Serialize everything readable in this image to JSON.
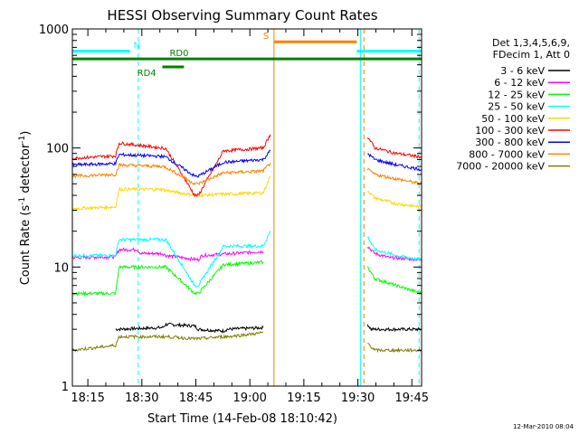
{
  "chart_data": {
    "type": "line",
    "title": "HESSI Observing Summary Count Rates",
    "xlabel": "Start Time (14-Feb-08 18:10:42)",
    "ylabel_main": "Count Rate (s",
    "ylabel_sup1": "-1",
    "ylabel_mid": " detector",
    "ylabel_sup2": "-1",
    "ylabel_end": ")",
    "yscale": "log",
    "ylim": [
      1,
      1000
    ],
    "xlim_minutes": [
      0,
      97
    ],
    "x_ticks": [
      "18:15",
      "18:30",
      "18:45",
      "19:00",
      "19:15",
      "19:30",
      "19:45"
    ],
    "y_ticks": [
      "1",
      "10",
      "100",
      "1000"
    ],
    "legend_header": [
      "Det 1,3,4,5,6,9,",
      "FDecim 1, Att 0"
    ],
    "series": [
      {
        "name": "3 - 6 keV",
        "color": "#000000",
        "segments": [
          {
            "x": [
              12,
              25,
              26,
              34,
              35,
              42,
              43,
              53
            ],
            "y": [
              3.0,
              3.1,
              3.3,
              3.2,
              3.0,
              2.9,
              3.0,
              3.1
            ]
          },
          {
            "x": [
              82,
              83,
              85,
              90,
              97
            ],
            "y": [
              3.3,
              3.0,
              3.0,
              3.0,
              3.0
            ]
          }
        ]
      },
      {
        "name": "6 - 12 keV",
        "color": "#ff00ff",
        "segments": [
          {
            "x": [
              0,
              12,
              13,
              18,
              19,
              25,
              26,
              35,
              36,
              53
            ],
            "y": [
              12.0,
              12.2,
              14.0,
              14.0,
              13.0,
              13.0,
              12.5,
              11.5,
              12.5,
              13.5
            ]
          },
          {
            "x": [
              82,
              84,
              88,
              97
            ],
            "y": [
              15.0,
              13.0,
              12.0,
              11.5
            ]
          }
        ]
      },
      {
        "name": "12 - 25 keV",
        "color": "#00ff00",
        "segments": [
          {
            "x": [
              0,
              12,
              13,
              25,
              26,
              34,
              35,
              42,
              43,
              53
            ],
            "y": [
              6.0,
              6.0,
              10.0,
              10.0,
              10.0,
              6.0,
              6.0,
              10.5,
              10.5,
              11.0
            ]
          },
          {
            "x": [
              82,
              84,
              90,
              97
            ],
            "y": [
              10.0,
              8.0,
              7.0,
              6.0
            ]
          }
        ]
      },
      {
        "name": "25 - 50 keV",
        "color": "#00ffff",
        "segments": [
          {
            "x": [
              0,
              12,
              13,
              25,
              26,
              34,
              35,
              42,
              43,
              53,
              55
            ],
            "y": [
              12.5,
              12.5,
              17.0,
              17.0,
              17.0,
              7.0,
              7.0,
              15.0,
              15.0,
              15.0,
              20.0
            ]
          },
          {
            "x": [
              82,
              84,
              90,
              97
            ],
            "y": [
              18.0,
              14.0,
              12.5,
              11.5
            ]
          }
        ]
      },
      {
        "name": "50 - 100 keV",
        "color": "#ffd700",
        "segments": [
          {
            "x": [
              0,
              12,
              13,
              25,
              26,
              34,
              35,
              42,
              43,
              53,
              55
            ],
            "y": [
              31,
              32,
              45,
              45,
              44,
              40,
              40,
              41,
              41,
              42,
              58
            ]
          },
          {
            "x": [
              82,
              84,
              90,
              97
            ],
            "y": [
              44,
              38,
              34,
              32
            ]
          }
        ]
      },
      {
        "name": "100 - 300 keV",
        "color": "#ff0000",
        "segments": [
          {
            "x": [
              0,
              12,
              13,
              25,
              26,
              34,
              35,
              42,
              43,
              53,
              55
            ],
            "y": [
              82,
              86,
              110,
              100,
              99,
              40,
              40,
              95,
              95,
              100,
              130
            ]
          },
          {
            "x": [
              82,
              84,
              90,
              97
            ],
            "y": [
              125,
              100,
              90,
              84
            ]
          }
        ]
      },
      {
        "name": "300 - 800 keV",
        "color": "#0000ff",
        "segments": [
          {
            "x": [
              0,
              12,
              13,
              25,
              26,
              34,
              35,
              42,
              43,
              53,
              55
            ],
            "y": [
              72,
              74,
              88,
              85,
              84,
              58,
              58,
              76,
              76,
              80,
              95
            ]
          },
          {
            "x": [
              82,
              84,
              90,
              97
            ],
            "y": [
              90,
              80,
              72,
              66
            ]
          }
        ]
      },
      {
        "name": "800 - 7000 keV",
        "color": "#ff8000",
        "segments": [
          {
            "x": [
              0,
              12,
              13,
              25,
              26,
              34,
              35,
              42,
              43,
              53,
              55
            ],
            "y": [
              58,
              60,
              72,
              70,
              69,
              50,
              50,
              62,
              62,
              64,
              75
            ]
          },
          {
            "x": [
              82,
              84,
              90,
              97
            ],
            "y": [
              66,
              60,
              55,
              50
            ]
          }
        ]
      },
      {
        "name": "7000 - 20000 keV",
        "color": "#808000",
        "segments": [
          {
            "x": [
              0,
              12,
              13,
              25,
              26,
              34,
              35,
              42,
              43,
              53
            ],
            "y": [
              2.0,
              2.2,
              2.6,
              2.6,
              2.6,
              2.5,
              2.5,
              2.6,
              2.6,
              2.8
            ]
          },
          {
            "x": [
              82,
              84,
              90,
              97
            ],
            "y": [
              2.3,
              2.0,
              2.0,
              2.0
            ]
          }
        ]
      }
    ],
    "flags": [
      {
        "label": "N",
        "color": "#00ffff",
        "value": 650,
        "x_start": 0,
        "x_end": 16,
        "label_x": 17
      },
      {
        "label": "N",
        "color": "#00ffff",
        "value": 650,
        "x_start": 79,
        "x_end": 97,
        "label_x": null
      },
      {
        "label": "S",
        "color": "#ff8000",
        "value": 780,
        "x_start": 56,
        "x_end": 79,
        "label_x": 53
      },
      {
        "label": "RD0",
        "color": "#008000",
        "value": 560,
        "x_start": 0,
        "x_end": 97,
        "label_x": 27
      },
      {
        "label": "RD4",
        "color": "#008000",
        "value": 480,
        "x_start": 25,
        "x_end": 31,
        "label_x": 18
      }
    ],
    "vlines": [
      {
        "x": 0,
        "color": "#00ffff",
        "style": "solid"
      },
      {
        "x": 18.3,
        "color": "#00ffff",
        "style": "dashed"
      },
      {
        "x": 56,
        "color": "#ff8000",
        "style": "solid"
      },
      {
        "x": 80,
        "color": "#00ffff",
        "style": "solid"
      },
      {
        "x": 81,
        "color": "#ff8000",
        "style": "dashed"
      },
      {
        "x": 96.3,
        "color": "#00ffff",
        "style": "dashed"
      }
    ],
    "grid": false,
    "legend_position": "right"
  },
  "footer_timestamp": "12-Mar-2010 08:04"
}
